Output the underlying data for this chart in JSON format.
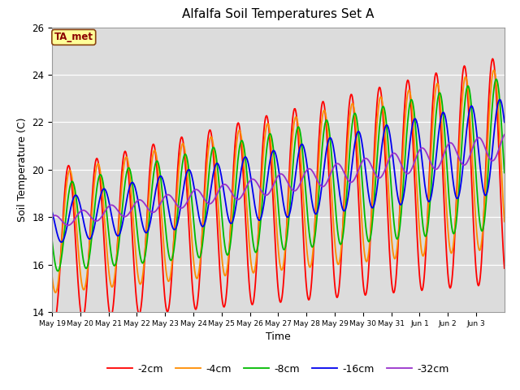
{
  "title": "Alfalfa Soil Temperatures Set A",
  "xlabel": "Time",
  "ylabel": "Soil Temperature (C)",
  "ylim": [
    14,
    26
  ],
  "annotation_text": "TA_met",
  "annotation_color": "#8B0000",
  "annotation_bg": "#FFFF99",
  "series_colors": {
    "-2cm": "#FF0000",
    "-4cm": "#FF8C00",
    "-8cm": "#00BB00",
    "-16cm": "#0000EE",
    "-32cm": "#9932CC"
  },
  "legend_labels": [
    "-2cm",
    "-4cm",
    "-8cm",
    "-16cm",
    "-32cm"
  ],
  "tick_labels": [
    "May 19",
    "May 20",
    "May 21",
    "May 22",
    "May 23",
    "May 24",
    "May 25",
    "May 26",
    "May 27",
    "May 28",
    "May 29",
    "May 30",
    "May 31",
    "Jun 1",
    "Jun 2",
    "Jun 3"
  ],
  "bg_color": "#DCDCDC",
  "fig_bg": "#FFFFFF",
  "grid_color": "#FFFFFF"
}
